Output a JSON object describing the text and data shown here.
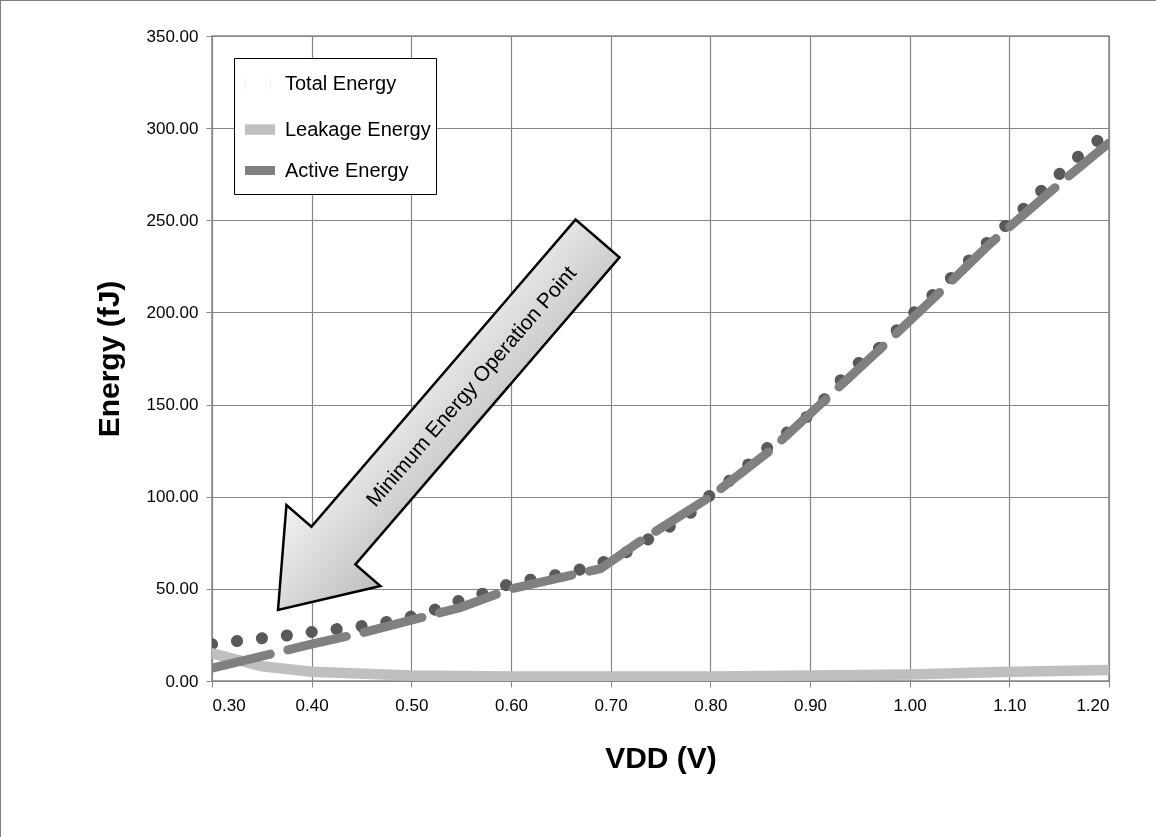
{
  "chart_data": {
    "type": "line",
    "xlabel": "VDD (V)",
    "ylabel": "Energy (fJ)",
    "xlim": [
      0.3,
      1.2
    ],
    "ylim": [
      0,
      350
    ],
    "xticks": [
      {
        "value": 0.3,
        "label": "0.30"
      },
      {
        "value": 0.4,
        "label": "0.40"
      },
      {
        "value": 0.5,
        "label": "0.50"
      },
      {
        "value": 0.6,
        "label": "0.60"
      },
      {
        "value": 0.7,
        "label": "0.70"
      },
      {
        "value": 0.8,
        "label": "0.80"
      },
      {
        "value": 0.9,
        "label": "0.90"
      },
      {
        "value": 1.0,
        "label": "1.00"
      },
      {
        "value": 1.1,
        "label": "1.10"
      },
      {
        "value": 1.2,
        "label": "1.20"
      }
    ],
    "yticks": [
      {
        "value": 0,
        "label": "0.00"
      },
      {
        "value": 50,
        "label": "50.00"
      },
      {
        "value": 100,
        "label": "100.00"
      },
      {
        "value": 150,
        "label": "150.00"
      },
      {
        "value": 200,
        "label": "200.00"
      },
      {
        "value": 250,
        "label": "250.00"
      },
      {
        "value": 300,
        "label": "300.00"
      },
      {
        "value": 350,
        "label": "350.00"
      }
    ],
    "grid": true,
    "legend": "top left",
    "annotations": [
      "Minimum Energy Operation Point"
    ],
    "series": [
      {
        "name": "Total Energy",
        "color": "#595959",
        "line_style": "dotted",
        "x": [
          0.3,
          0.33,
          0.355,
          0.38,
          0.405,
          0.44,
          0.465,
          0.49,
          0.52,
          0.545,
          0.575,
          0.6,
          0.63,
          0.655,
          0.68,
          0.71,
          0.735,
          0.76,
          0.785,
          0.8,
          0.825,
          0.845,
          0.865,
          0.89,
          0.91,
          0.925,
          0.945,
          0.97,
          0.99,
          1.01,
          1.03,
          1.05,
          1.07,
          1.09,
          1.11,
          1.13,
          1.15,
          1.17,
          1.195
        ],
        "values": [
          20,
          22,
          23.5,
          25,
          27,
          29,
          31,
          33.5,
          38,
          43,
          48,
          53,
          56,
          58.5,
          62,
          68,
          76,
          84,
          93,
          101,
          111,
          121,
          130,
          140,
          150,
          160,
          171,
          181,
          192,
          203,
          213,
          223,
          234,
          244,
          254,
          265,
          275,
          285,
          296
        ]
      },
      {
        "name": "Leakage Energy",
        "color": "#bfbfbf",
        "line_style": "solid",
        "x": [
          0.3,
          0.35,
          0.4,
          0.5,
          0.6,
          0.7,
          0.8,
          0.9,
          1.0,
          1.1,
          1.2
        ],
        "values": [
          15,
          8,
          5,
          3,
          2.5,
          2.5,
          2.5,
          3,
          3.5,
          5,
          6
        ]
      },
      {
        "name": "Active Energy",
        "color": "#808080",
        "line_style": "dashed",
        "x": [
          0.3,
          0.4,
          0.45,
          0.55,
          0.6,
          0.69,
          0.73,
          0.8,
          0.86,
          0.93,
          0.97,
          1.04,
          1.08,
          1.155,
          1.2
        ],
        "values": [
          7,
          20,
          26,
          40,
          50,
          61,
          76,
          100,
          125,
          160,
          180,
          216,
          237,
          272,
          292
        ]
      }
    ]
  }
}
